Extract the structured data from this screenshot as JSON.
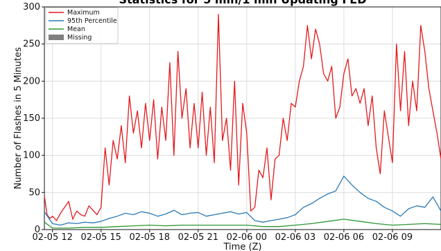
{
  "chart_data": {
    "type": "line",
    "title": "Statistics for 5 min/1 min Updating FED",
    "xlabel": "Time (Z)",
    "ylabel": "Number of Flashes in 5 Minutes",
    "xlim": [
      "2025-02-05T11:30",
      "2025-02-06T12:00"
    ],
    "ylim": [
      0,
      300
    ],
    "xticks": [
      {
        "t": "2025-02-05T12:00",
        "label": "02-05 12"
      },
      {
        "t": "2025-02-05T15:00",
        "label": "02-05 15"
      },
      {
        "t": "2025-02-05T18:00",
        "label": "02-05 18"
      },
      {
        "t": "2025-02-05T21:00",
        "label": "02-05 21"
      },
      {
        "t": "2025-02-06T00:00",
        "label": "02-06 00"
      },
      {
        "t": "2025-02-06T03:00",
        "label": "02-06 03"
      },
      {
        "t": "2025-02-06T06:00",
        "label": "02-06 06"
      },
      {
        "t": "2025-02-06T09:00",
        "label": "02-06 09"
      }
    ],
    "yticks": [
      0,
      50,
      100,
      150,
      200,
      250,
      300
    ],
    "legend": {
      "position": "top-left",
      "entries": [
        {
          "label": "Maximum",
          "kind": "line",
          "color": "#e3191c"
        },
        {
          "label": "95th Percentile",
          "kind": "line",
          "color": "#2a7ab5"
        },
        {
          "label": "Mean",
          "kind": "line",
          "color": "#2a9630"
        },
        {
          "label": "Missing",
          "kind": "patch",
          "color": "#7f7f7f"
        }
      ]
    },
    "series": [
      {
        "name": "Maximum",
        "color": "#e3191c",
        "x": [
          "2025-02-05T11:30",
          "2025-02-05T11:40",
          "2025-02-05T11:50",
          "2025-02-05T12:00",
          "2025-02-05T12:15",
          "2025-02-05T12:30",
          "2025-02-05T12:45",
          "2025-02-05T13:00",
          "2025-02-05T13:15",
          "2025-02-05T13:30",
          "2025-02-05T13:45",
          "2025-02-05T14:00",
          "2025-02-05T14:15",
          "2025-02-05T14:30",
          "2025-02-05T14:45",
          "2025-02-05T15:00",
          "2025-02-05T15:15",
          "2025-02-05T15:30",
          "2025-02-05T15:45",
          "2025-02-05T16:00",
          "2025-02-05T16:15",
          "2025-02-05T16:30",
          "2025-02-05T16:45",
          "2025-02-05T17:00",
          "2025-02-05T17:15",
          "2025-02-05T17:30",
          "2025-02-05T17:45",
          "2025-02-05T18:00",
          "2025-02-05T18:15",
          "2025-02-05T18:30",
          "2025-02-05T18:45",
          "2025-02-05T19:00",
          "2025-02-05T19:15",
          "2025-02-05T19:30",
          "2025-02-05T19:45",
          "2025-02-05T20:00",
          "2025-02-05T20:15",
          "2025-02-05T20:30",
          "2025-02-05T20:45",
          "2025-02-05T21:00",
          "2025-02-05T21:15",
          "2025-02-05T21:30",
          "2025-02-05T21:45",
          "2025-02-05T22:00",
          "2025-02-05T22:15",
          "2025-02-05T22:30",
          "2025-02-05T22:45",
          "2025-02-05T23:00",
          "2025-02-05T23:15",
          "2025-02-05T23:30",
          "2025-02-05T23:45",
          "2025-02-06T00:00",
          "2025-02-06T00:15",
          "2025-02-06T00:30",
          "2025-02-06T00:45",
          "2025-02-06T01:00",
          "2025-02-06T01:15",
          "2025-02-06T01:30",
          "2025-02-06T01:45",
          "2025-02-06T02:00",
          "2025-02-06T02:15",
          "2025-02-06T02:30",
          "2025-02-06T02:45",
          "2025-02-06T03:00",
          "2025-02-06T03:15",
          "2025-02-06T03:30",
          "2025-02-06T03:45",
          "2025-02-06T04:00",
          "2025-02-06T04:15",
          "2025-02-06T04:30",
          "2025-02-06T04:45",
          "2025-02-06T05:00",
          "2025-02-06T05:15",
          "2025-02-06T05:30",
          "2025-02-06T05:45",
          "2025-02-06T06:00",
          "2025-02-06T06:15",
          "2025-02-06T06:30",
          "2025-02-06T06:45",
          "2025-02-06T07:00",
          "2025-02-06T07:15",
          "2025-02-06T07:30",
          "2025-02-06T07:45",
          "2025-02-06T08:00",
          "2025-02-06T08:15",
          "2025-02-06T08:30",
          "2025-02-06T08:45",
          "2025-02-06T09:00",
          "2025-02-06T09:15",
          "2025-02-06T09:30",
          "2025-02-06T09:45",
          "2025-02-06T10:00",
          "2025-02-06T10:15",
          "2025-02-06T10:30",
          "2025-02-06T10:45",
          "2025-02-06T11:00",
          "2025-02-06T11:15",
          "2025-02-06T11:30",
          "2025-02-06T11:45",
          "2025-02-06T12:00"
        ],
        "values": [
          45,
          20,
          15,
          18,
          12,
          22,
          30,
          38,
          14,
          25,
          20,
          18,
          32,
          26,
          20,
          30,
          110,
          60,
          120,
          95,
          140,
          90,
          180,
          130,
          160,
          110,
          170,
          120,
          175,
          95,
          165,
          120,
          225,
          100,
          240,
          150,
          190,
          110,
          170,
          110,
          185,
          100,
          165,
          90,
          290,
          120,
          150,
          80,
          200,
          60,
          170,
          130,
          25,
          30,
          80,
          70,
          110,
          40,
          95,
          100,
          150,
          120,
          170,
          165,
          200,
          220,
          275,
          230,
          270,
          250,
          210,
          200,
          220,
          150,
          165,
          210,
          230,
          180,
          190,
          170,
          190,
          140,
          180,
          110,
          75,
          160,
          125,
          90,
          250,
          160,
          240,
          140,
          200,
          160,
          275,
          240,
          190,
          160,
          130,
          95
        ]
      },
      {
        "name": "95th Percentile",
        "color": "#2a7ab5",
        "x": [
          "2025-02-05T11:30",
          "2025-02-05T12:00",
          "2025-02-05T12:30",
          "2025-02-05T13:00",
          "2025-02-05T13:30",
          "2025-02-05T14:00",
          "2025-02-05T14:30",
          "2025-02-05T15:00",
          "2025-02-05T15:30",
          "2025-02-05T16:00",
          "2025-02-05T16:30",
          "2025-02-05T17:00",
          "2025-02-05T17:30",
          "2025-02-05T18:00",
          "2025-02-05T18:30",
          "2025-02-05T19:00",
          "2025-02-05T19:30",
          "2025-02-05T20:00",
          "2025-02-05T20:30",
          "2025-02-05T21:00",
          "2025-02-05T21:30",
          "2025-02-05T22:00",
          "2025-02-05T22:30",
          "2025-02-05T23:00",
          "2025-02-05T23:30",
          "2025-02-06T00:00",
          "2025-02-06T00:30",
          "2025-02-06T01:00",
          "2025-02-06T01:30",
          "2025-02-06T02:00",
          "2025-02-06T02:30",
          "2025-02-06T03:00",
          "2025-02-06T03:30",
          "2025-02-06T04:00",
          "2025-02-06T04:30",
          "2025-02-06T05:00",
          "2025-02-06T05:30",
          "2025-02-06T06:00",
          "2025-02-06T06:30",
          "2025-02-06T07:00",
          "2025-02-06T07:30",
          "2025-02-06T08:00",
          "2025-02-06T08:30",
          "2025-02-06T09:00",
          "2025-02-06T09:30",
          "2025-02-06T10:00",
          "2025-02-06T10:30",
          "2025-02-06T11:00",
          "2025-02-06T11:30",
          "2025-02-06T12:00"
        ],
        "values": [
          24,
          8,
          6,
          9,
          8,
          10,
          9,
          11,
          15,
          18,
          22,
          20,
          24,
          22,
          18,
          21,
          26,
          20,
          22,
          23,
          18,
          20,
          22,
          24,
          21,
          23,
          12,
          10,
          12,
          14,
          16,
          20,
          30,
          35,
          42,
          48,
          52,
          72,
          60,
          50,
          42,
          38,
          30,
          25,
          18,
          28,
          32,
          30,
          44,
          25
        ]
      },
      {
        "name": "Mean",
        "color": "#2a9630",
        "x": [
          "2025-02-05T11:30",
          "2025-02-05T12:00",
          "2025-02-05T13:00",
          "2025-02-05T14:00",
          "2025-02-05T15:00",
          "2025-02-05T16:00",
          "2025-02-05T17:00",
          "2025-02-05T18:00",
          "2025-02-05T19:00",
          "2025-02-05T20:00",
          "2025-02-05T21:00",
          "2025-02-05T22:00",
          "2025-02-05T23:00",
          "2025-02-06T00:00",
          "2025-02-06T01:00",
          "2025-02-06T02:00",
          "2025-02-06T03:00",
          "2025-02-06T04:00",
          "2025-02-06T05:00",
          "2025-02-06T06:00",
          "2025-02-06T07:00",
          "2025-02-06T08:00",
          "2025-02-06T09:00",
          "2025-02-06T10:00",
          "2025-02-06T11:00",
          "2025-02-06T12:00"
        ],
        "values": [
          10,
          2,
          2,
          3,
          3,
          4,
          5,
          6,
          5,
          6,
          6,
          6,
          6,
          6,
          4,
          4,
          6,
          8,
          11,
          14,
          11,
          8,
          6,
          7,
          8,
          7
        ]
      }
    ]
  }
}
